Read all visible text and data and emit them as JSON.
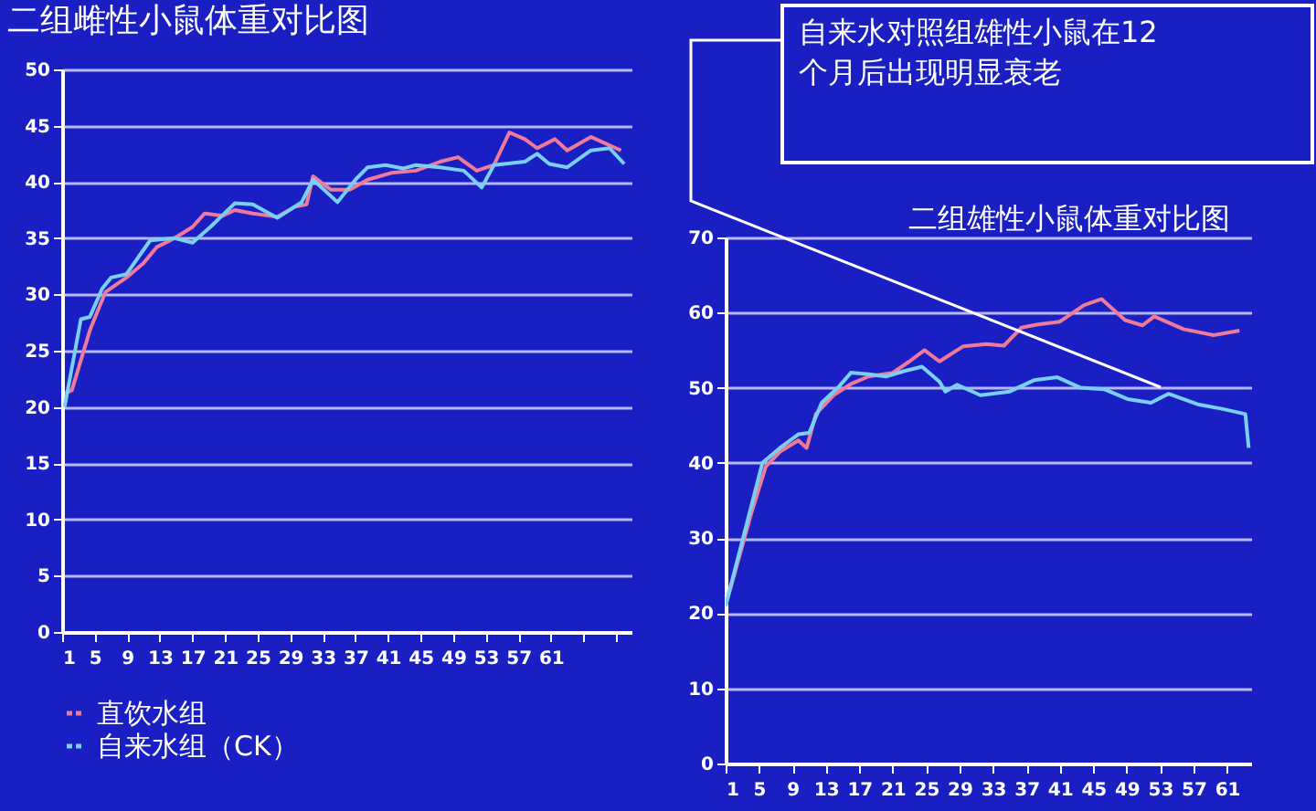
{
  "chart_data": [
    {
      "type": "line",
      "title": "二组雌性小鼠体重对比图",
      "xlim": [
        1,
        71
      ],
      "ylim": [
        0,
        50
      ],
      "xticks": [
        1,
        5,
        9,
        13,
        17,
        21,
        25,
        29,
        33,
        37,
        41,
        45,
        49,
        53,
        57,
        61,
        {
          "value": 65,
          "label": null
        },
        {
          "value": 69,
          "label": null
        }
      ],
      "yticks": [
        0,
        5,
        10,
        15,
        20,
        25,
        30,
        35,
        40,
        45,
        50
      ],
      "grid": "y",
      "legend": "bottom",
      "series": [
        {
          "name": "直饮水组",
          "color": "#f07a9a",
          "x": [
            1.4,
            2.2,
            4.4,
            6.3,
            8.9,
            11,
            12.6,
            14.8,
            17,
            18.5,
            20.7,
            22.2,
            24.4,
            27.4,
            29.6,
            31,
            31.8,
            34,
            36.3,
            38.5,
            41.4,
            44.4,
            47.4,
            49.6,
            51.9,
            54,
            55.9,
            57.8,
            59.3,
            61.5,
            63,
            65.9,
            69.6
          ],
          "values": [
            21.2,
            21.5,
            26.8,
            30.2,
            31.5,
            32.8,
            34.2,
            35,
            36,
            37.2,
            37,
            37.5,
            37.2,
            36.9,
            37.8,
            38,
            40.5,
            39.3,
            39.3,
            40.2,
            40.8,
            41,
            41.8,
            42.2,
            41,
            41.5,
            44.4,
            43.8,
            43,
            43.8,
            42.8,
            44,
            42.8
          ]
        },
        {
          "name": "自来水组（CK）",
          "color": "#7ad0f2",
          "x": [
            1.3,
            3.3,
            4.4,
            5.9,
            7,
            8.9,
            11.8,
            14.8,
            17,
            19.2,
            22.2,
            24.4,
            27.4,
            30.4,
            31.8,
            34.8,
            37,
            38.5,
            40.7,
            42.9,
            44.4,
            47.4,
            50.3,
            52.5,
            54,
            57.8,
            59.3,
            60.8,
            63,
            65.9,
            68.2,
            70
          ],
          "values": [
            20,
            27.8,
            28,
            30.5,
            31.5,
            31.8,
            34.8,
            35,
            34.6,
            36,
            38.1,
            38,
            36.8,
            38.2,
            40.2,
            38.2,
            40.2,
            41.3,
            41.5,
            41.2,
            41.5,
            41.3,
            41,
            39.5,
            41.5,
            41.8,
            42.5,
            41.6,
            41.3,
            42.8,
            43,
            41.6
          ]
        }
      ]
    },
    {
      "type": "line",
      "title": "二组雄性小鼠体重对比图",
      "xlim": [
        1,
        64
      ],
      "ylim": [
        0,
        70
      ],
      "xticks": [
        1,
        5,
        9,
        13,
        17,
        21,
        25,
        29,
        33,
        37,
        41,
        45,
        49,
        53,
        57,
        61
      ],
      "yticks": [
        0,
        10,
        20,
        30,
        40,
        50,
        60,
        70
      ],
      "grid": "y",
      "annotations": [
        "自来水对照组雄性小鼠在12个月后出现明显衰老"
      ],
      "series": [
        {
          "color": "#f07a9a",
          "x": [
            1,
            4,
            5.8,
            7.5,
            9.7,
            10.7,
            11.8,
            13.9,
            16,
            18.1,
            21,
            23,
            24.8,
            26.6,
            29.4,
            32.2,
            34.3,
            36.4,
            38.2,
            41,
            43.9,
            46,
            48.8,
            50.9,
            52.3,
            55.8,
            59.4,
            62.5
          ],
          "values": [
            21,
            33,
            39.5,
            41.5,
            43,
            42,
            46.5,
            49,
            50.5,
            51.5,
            52,
            53.5,
            55,
            53.5,
            55.5,
            55.8,
            55.6,
            58,
            58.4,
            58.8,
            61,
            61.8,
            59,
            58.3,
            59.5,
            57.8,
            57,
            57.6
          ]
        },
        {
          "color": "#7ad0f2",
          "x": [
            1,
            5.4,
            7.5,
            9.7,
            11,
            12.5,
            14.6,
            16,
            18.1,
            20.2,
            22.3,
            24.5,
            26.6,
            27.3,
            28.7,
            31.5,
            35,
            37.9,
            40.7,
            43.5,
            46.3,
            49.1,
            51.9,
            54,
            57.5,
            60.4,
            63.2,
            63.6
          ],
          "values": [
            21,
            40,
            42,
            43.8,
            44,
            48,
            50.2,
            52,
            51.8,
            51.5,
            52.2,
            52.8,
            50.8,
            49.5,
            50.4,
            49,
            49.5,
            51,
            51.4,
            50,
            49.8,
            48.5,
            48,
            49.2,
            47.8,
            47.2,
            46.5,
            42
          ]
        }
      ]
    }
  ]
}
